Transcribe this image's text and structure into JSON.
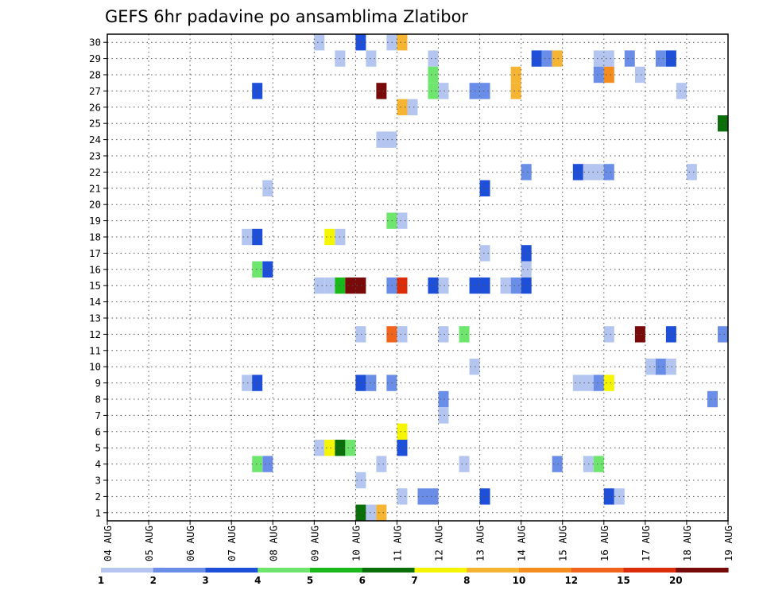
{
  "chart_data": {
    "type": "heatmap",
    "title": "GEFS 6hr padavine po ansamblima Zlatibor",
    "xlabel": "",
    "ylabel": "",
    "x_tick_labels": [
      "04 AUG",
      "05 AUG",
      "06 AUG",
      "07 AUG",
      "08 AUG",
      "09 AUG",
      "10 AUG",
      "11 AUG",
      "12 AUG",
      "13 AUG",
      "14 AUG",
      "15 AUG",
      "16 AUG",
      "17 AUG",
      "18 AUG",
      "19 AUG"
    ],
    "y_tick_labels": [
      "1",
      "2",
      "3",
      "4",
      "5",
      "6",
      "7",
      "8",
      "9",
      "10",
      "11",
      "12",
      "13",
      "14",
      "15",
      "16",
      "17",
      "18",
      "19",
      "20",
      "21",
      "22",
      "23",
      "24",
      "25",
      "26",
      "27",
      "28",
      "29",
      "30"
    ],
    "xlim_days": [
      0,
      15
    ],
    "ylim": [
      0.5,
      30.5
    ],
    "grid": true,
    "legend_placement": "bottom",
    "legend_bins": [
      {
        "color": "#b4c6f0",
        "label": "1"
      },
      {
        "color": "#6a8ee8",
        "label": "2"
      },
      {
        "color": "#1e4fd8",
        "label": "3"
      },
      {
        "color": "#6ee66e",
        "label": "4"
      },
      {
        "color": "#1ab81a",
        "label": "5"
      },
      {
        "color": "#0a6e0a",
        "label": "6"
      },
      {
        "color": "#f5f500",
        "label": "7"
      },
      {
        "color": "#f5b432",
        "label": "8"
      },
      {
        "color": "#f58c1e",
        "label": "10"
      },
      {
        "color": "#f0641e",
        "label": "12"
      },
      {
        "color": "#dc2d0a",
        "label": "15"
      },
      {
        "color": "#780a0a",
        "label": "20"
      }
    ],
    "cells": [
      {
        "m": 30,
        "x": [
          [
            5.0,
            5.25,
            0
          ],
          [
            6.0,
            6.25,
            2
          ],
          [
            6.75,
            7.0,
            0
          ],
          [
            7.0,
            7.25,
            7
          ]
        ]
      },
      {
        "m": 29,
        "x": [
          [
            5.5,
            5.75,
            0
          ],
          [
            6.25,
            6.5,
            0
          ],
          [
            7.75,
            8.0,
            0
          ],
          [
            10.25,
            10.5,
            2
          ],
          [
            10.5,
            10.75,
            1
          ],
          [
            10.75,
            11.0,
            7
          ],
          [
            11.75,
            12.0,
            0
          ],
          [
            12.0,
            12.25,
            0
          ],
          [
            12.5,
            12.75,
            1
          ],
          [
            13.25,
            13.5,
            1
          ],
          [
            13.5,
            13.75,
            2
          ]
        ]
      },
      {
        "m": 28,
        "x": [
          [
            7.75,
            8.0,
            3
          ],
          [
            9.75,
            10.0,
            7
          ],
          [
            11.75,
            12.0,
            1
          ],
          [
            12.0,
            12.25,
            8
          ],
          [
            12.75,
            13.0,
            0
          ]
        ]
      },
      {
        "m": 27,
        "x": [
          [
            3.5,
            3.75,
            2
          ],
          [
            6.5,
            6.75,
            11
          ],
          [
            7.75,
            8.0,
            3
          ],
          [
            8.0,
            8.25,
            0
          ],
          [
            8.75,
            9.0,
            1
          ],
          [
            9.0,
            9.25,
            1
          ],
          [
            9.75,
            10.0,
            7
          ],
          [
            13.75,
            14.0,
            0
          ]
        ]
      },
      {
        "m": 26,
        "x": [
          [
            7.0,
            7.25,
            7
          ],
          [
            7.25,
            7.5,
            0
          ]
        ]
      },
      {
        "m": 25,
        "x": [
          [
            14.75,
            15.0,
            5
          ]
        ]
      },
      {
        "m": 24,
        "x": [
          [
            6.5,
            7.0,
            0
          ]
        ]
      },
      {
        "m": 22,
        "x": [
          [
            10.0,
            10.25,
            1
          ],
          [
            11.25,
            11.5,
            2
          ],
          [
            11.5,
            12.0,
            0
          ],
          [
            12.0,
            12.25,
            1
          ],
          [
            14.0,
            14.25,
            0
          ]
        ]
      },
      {
        "m": 21,
        "x": [
          [
            3.75,
            4.0,
            0
          ],
          [
            9.0,
            9.25,
            2
          ]
        ]
      },
      {
        "m": 20,
        "x": []
      },
      {
        "m": 19,
        "x": [
          [
            6.75,
            7.0,
            3
          ],
          [
            7.0,
            7.25,
            0
          ]
        ]
      },
      {
        "m": 18,
        "x": [
          [
            3.25,
            3.5,
            0
          ],
          [
            3.5,
            3.75,
            2
          ],
          [
            5.25,
            5.5,
            6
          ],
          [
            5.5,
            5.75,
            0
          ]
        ]
      },
      {
        "m": 17,
        "x": [
          [
            9.0,
            9.25,
            0
          ],
          [
            10.0,
            10.25,
            2
          ]
        ]
      },
      {
        "m": 16,
        "x": [
          [
            3.5,
            3.75,
            3
          ],
          [
            3.75,
            4.0,
            2
          ],
          [
            10.0,
            10.25,
            0
          ]
        ]
      },
      {
        "m": 15,
        "x": [
          [
            5.0,
            5.25,
            0
          ],
          [
            5.25,
            5.5,
            0
          ],
          [
            5.5,
            5.75,
            4
          ],
          [
            5.75,
            6.25,
            11
          ],
          [
            6.75,
            7.0,
            1
          ],
          [
            7.0,
            7.25,
            10
          ],
          [
            7.75,
            8.0,
            2
          ],
          [
            8.0,
            8.25,
            0
          ],
          [
            8.75,
            9.25,
            2
          ],
          [
            9.5,
            9.75,
            0
          ],
          [
            9.75,
            10.0,
            1
          ],
          [
            10.0,
            10.25,
            2
          ]
        ]
      },
      {
        "m": 12,
        "x": [
          [
            6.0,
            6.25,
            0
          ],
          [
            6.75,
            7.0,
            9
          ],
          [
            7.0,
            7.25,
            0
          ],
          [
            8.0,
            8.25,
            0
          ],
          [
            8.5,
            8.75,
            3
          ],
          [
            12.0,
            12.25,
            0
          ],
          [
            12.75,
            13.0,
            11
          ],
          [
            13.5,
            13.75,
            2
          ],
          [
            14.75,
            15.0,
            1
          ]
        ]
      },
      {
        "m": 10,
        "x": [
          [
            8.75,
            9.0,
            0
          ],
          [
            13.0,
            13.25,
            0
          ],
          [
            13.25,
            13.5,
            1
          ],
          [
            13.5,
            13.75,
            0
          ]
        ]
      },
      {
        "m": 9,
        "x": [
          [
            3.25,
            3.5,
            0
          ],
          [
            3.5,
            3.75,
            2
          ],
          [
            6.0,
            6.25,
            2
          ],
          [
            6.25,
            6.5,
            1
          ],
          [
            6.75,
            7.0,
            1
          ],
          [
            11.25,
            11.75,
            0
          ],
          [
            11.75,
            12.0,
            1
          ],
          [
            12.0,
            12.25,
            6
          ]
        ]
      },
      {
        "m": 8,
        "x": [
          [
            8.0,
            8.25,
            1
          ],
          [
            14.5,
            14.75,
            1
          ]
        ]
      },
      {
        "m": 7,
        "x": [
          [
            8.0,
            8.25,
            0
          ]
        ]
      },
      {
        "m": 6,
        "x": [
          [
            7.0,
            7.25,
            6
          ]
        ]
      },
      {
        "m": 5,
        "x": [
          [
            5.0,
            5.25,
            0
          ],
          [
            5.25,
            5.5,
            6
          ],
          [
            5.5,
            5.75,
            5
          ],
          [
            5.75,
            6.0,
            3
          ],
          [
            7.0,
            7.25,
            2
          ]
        ]
      },
      {
        "m": 4,
        "x": [
          [
            3.5,
            3.75,
            3
          ],
          [
            3.75,
            4.0,
            1
          ],
          [
            6.5,
            6.75,
            0
          ],
          [
            8.5,
            8.75,
            0
          ],
          [
            10.75,
            11.0,
            1
          ],
          [
            11.5,
            11.75,
            0
          ],
          [
            11.75,
            12.0,
            3
          ]
        ]
      },
      {
        "m": 3,
        "x": [
          [
            6.0,
            6.25,
            0
          ]
        ]
      },
      {
        "m": 2,
        "x": [
          [
            7.0,
            7.25,
            0
          ],
          [
            7.5,
            8.0,
            1
          ],
          [
            9.0,
            9.25,
            2
          ],
          [
            12.0,
            12.25,
            2
          ],
          [
            12.25,
            12.5,
            0
          ]
        ]
      },
      {
        "m": 1,
        "x": [
          [
            6.0,
            6.25,
            5
          ],
          [
            6.25,
            6.5,
            0
          ],
          [
            6.5,
            6.75,
            7
          ]
        ]
      }
    ]
  }
}
